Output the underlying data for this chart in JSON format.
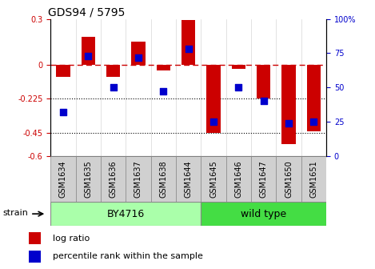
{
  "title": "GDS94 / 5795",
  "samples": [
    "GSM1634",
    "GSM1635",
    "GSM1636",
    "GSM1637",
    "GSM1638",
    "GSM1644",
    "GSM1645",
    "GSM1646",
    "GSM1647",
    "GSM1650",
    "GSM1651"
  ],
  "log_ratio": [
    -0.08,
    0.18,
    -0.08,
    0.15,
    -0.04,
    0.29,
    -0.45,
    -0.03,
    -0.22,
    -0.52,
    -0.44
  ],
  "percentile_rank": [
    32,
    73,
    50,
    72,
    47,
    78,
    25,
    50,
    40,
    24,
    25
  ],
  "bar_color": "#cc0000",
  "dot_color": "#0000cc",
  "ylim_left": [
    -0.6,
    0.3
  ],
  "ylim_right": [
    0,
    100
  ],
  "yticks_left": [
    0.3,
    0.0,
    -0.225,
    -0.45,
    -0.6
  ],
  "ytick_labels_left": [
    "0.3",
    "0",
    "-0.225",
    "-0.45",
    "-0.6"
  ],
  "yticks_right": [
    100,
    75,
    50,
    25,
    0
  ],
  "ytick_labels_right": [
    "100%",
    "75",
    "50",
    "25",
    "0"
  ],
  "hlines": [
    -0.225,
    -0.45
  ],
  "dashed_hline_y": 0.0,
  "group1_label": "BY4716",
  "group1_count": 6,
  "group2_label": "wild type",
  "group2_count": 5,
  "strain_label": "strain",
  "legend_log_ratio": "log ratio",
  "legend_percentile": "percentile rank within the sample",
  "group1_color": "#aaffaa",
  "group2_color": "#44dd44",
  "cell_color": "#d0d0d0",
  "cell_border_color": "#888888",
  "bar_width": 0.55,
  "dot_size": 40,
  "title_fontsize": 10,
  "tick_fontsize": 7,
  "label_fontsize": 8
}
